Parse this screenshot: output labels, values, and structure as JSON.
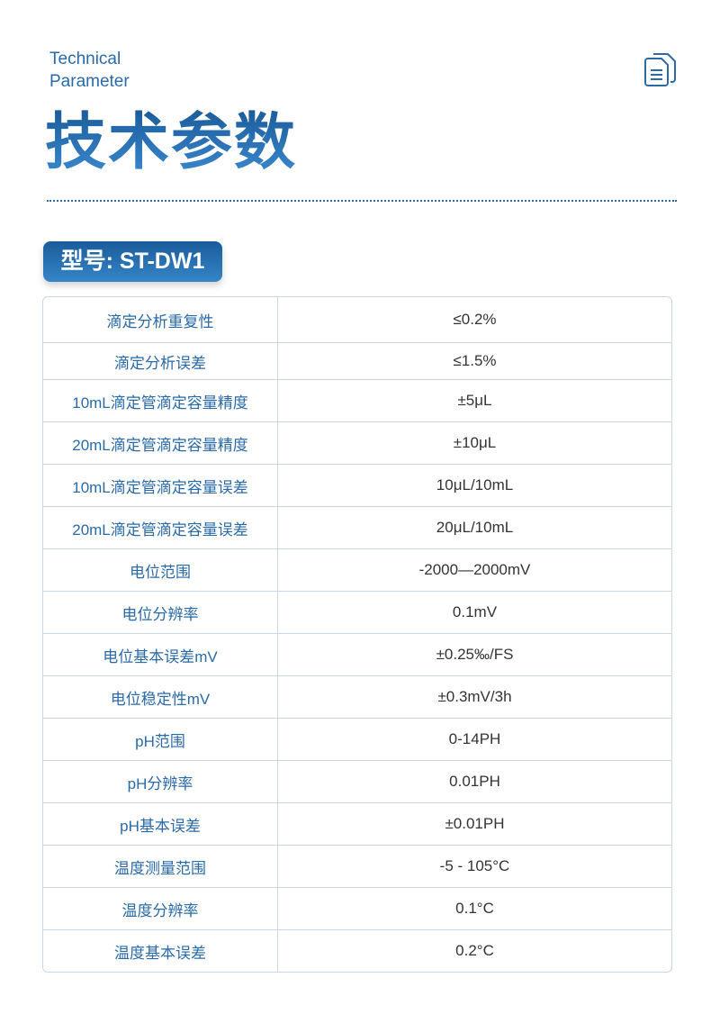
{
  "header": {
    "en_line1": "Technical",
    "en_line2": "Parameter",
    "title": "技术参数",
    "icon": "document-copy-icon"
  },
  "model_badge": "型号: ST-DW1",
  "colors": {
    "accent": "#2a6aa8",
    "text": "#333333",
    "border": "#c8d8e6"
  },
  "specs": [
    {
      "label": "滴定分析重复性",
      "value": "≤0.2%"
    },
    {
      "label": "滴定分析误差",
      "value": "≤1.5%"
    },
    {
      "label": "10mL滴定管滴定容量精度",
      "value": "±5μL"
    },
    {
      "label": "20mL滴定管滴定容量精度",
      "value": "±10μL"
    },
    {
      "label": "10mL滴定管滴定容量误差",
      "value": "10μL/10mL"
    },
    {
      "label": "20mL滴定管滴定容量误差",
      "value": "20μL/10mL"
    },
    {
      "label": "电位范围",
      "value": "-2000—2000mV"
    },
    {
      "label": "电位分辨率",
      "value": "0.1mV"
    },
    {
      "label": "电位基本误差mV",
      "value": "±0.25‰/FS"
    },
    {
      "label": "电位稳定性mV",
      "value": "±0.3mV/3h"
    },
    {
      "label": "pH范围",
      "value": "0-14PH"
    },
    {
      "label": "pH分辨率",
      "value": "0.01PH"
    },
    {
      "label": "pH基本误差",
      "value": "±0.01PH"
    },
    {
      "label": "温度测量范围",
      "value": "-5 - 105°C"
    },
    {
      "label": "温度分辨率",
      "value": "0.1°C"
    },
    {
      "label": "温度基本误差",
      "value": "0.2°C"
    }
  ]
}
